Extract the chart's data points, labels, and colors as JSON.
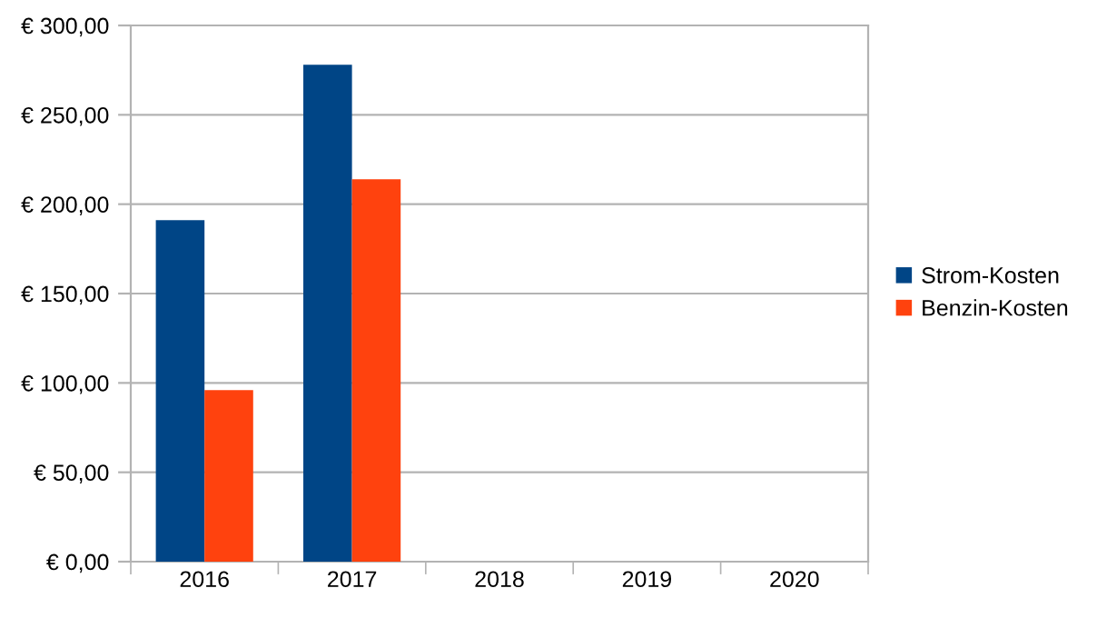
{
  "chart_data": {
    "type": "bar",
    "categories": [
      "2016",
      "2017",
      "2018",
      "2019",
      "2020"
    ],
    "series": [
      {
        "name": "Strom-Kosten",
        "color": "#004586",
        "values": [
          191,
          278,
          null,
          null,
          null
        ]
      },
      {
        "name": "Benzin-Kosten",
        "color": "#ff420e",
        "values": [
          96,
          214,
          null,
          null,
          null
        ]
      }
    ],
    "ylim": [
      0,
      300
    ],
    "yticks": [
      {
        "value": 0,
        "label": "€ 0,00"
      },
      {
        "value": 50,
        "label": "€ 50,00"
      },
      {
        "value": 100,
        "label": "€ 100,00"
      },
      {
        "value": 150,
        "label": "€ 150,00"
      },
      {
        "value": 200,
        "label": "€ 200,00"
      },
      {
        "value": 250,
        "label": "€ 250,00"
      },
      {
        "value": 300,
        "label": "€ 300,00"
      }
    ],
    "grid": "y",
    "legend": "right"
  }
}
